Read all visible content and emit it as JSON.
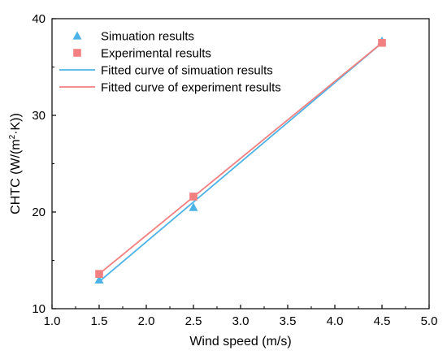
{
  "chart_data": {
    "type": "scatter",
    "xlabel": "Wind speed (m/s)",
    "ylabel_main": "CHTC (W/(m",
    "ylabel_sup": "2",
    "ylabel_tail": "·K))",
    "xlim": [
      1.0,
      5.0
    ],
    "ylim": [
      10,
      40
    ],
    "xticks": [
      "1.0",
      "1.5",
      "2.0",
      "2.5",
      "3.0",
      "3.5",
      "4.0",
      "4.5",
      "5.0"
    ],
    "yticks": [
      "10",
      "20",
      "30",
      "40"
    ],
    "grid": false,
    "legend_position": "top-left",
    "series": [
      {
        "name": "Simuation results",
        "kind": "marker",
        "marker": "triangle",
        "color": "#4DB3E6",
        "points": [
          [
            1.5,
            13.0
          ],
          [
            2.5,
            20.5
          ],
          [
            4.5,
            37.7
          ]
        ]
      },
      {
        "name": "Experimental results",
        "kind": "marker",
        "marker": "square",
        "color": "#F28080",
        "points": [
          [
            1.5,
            13.6
          ],
          [
            2.5,
            21.6
          ],
          [
            4.5,
            37.5
          ]
        ]
      },
      {
        "name": "Fitted curve of simuation results",
        "kind": "line",
        "color": "#4DB3E6",
        "points": [
          [
            1.5,
            12.8
          ],
          [
            4.5,
            37.5
          ]
        ]
      },
      {
        "name": "Fitted curve of experiment results",
        "kind": "line",
        "color": "#F28080",
        "points": [
          [
            1.5,
            13.6
          ],
          [
            4.5,
            37.5
          ]
        ]
      }
    ]
  }
}
